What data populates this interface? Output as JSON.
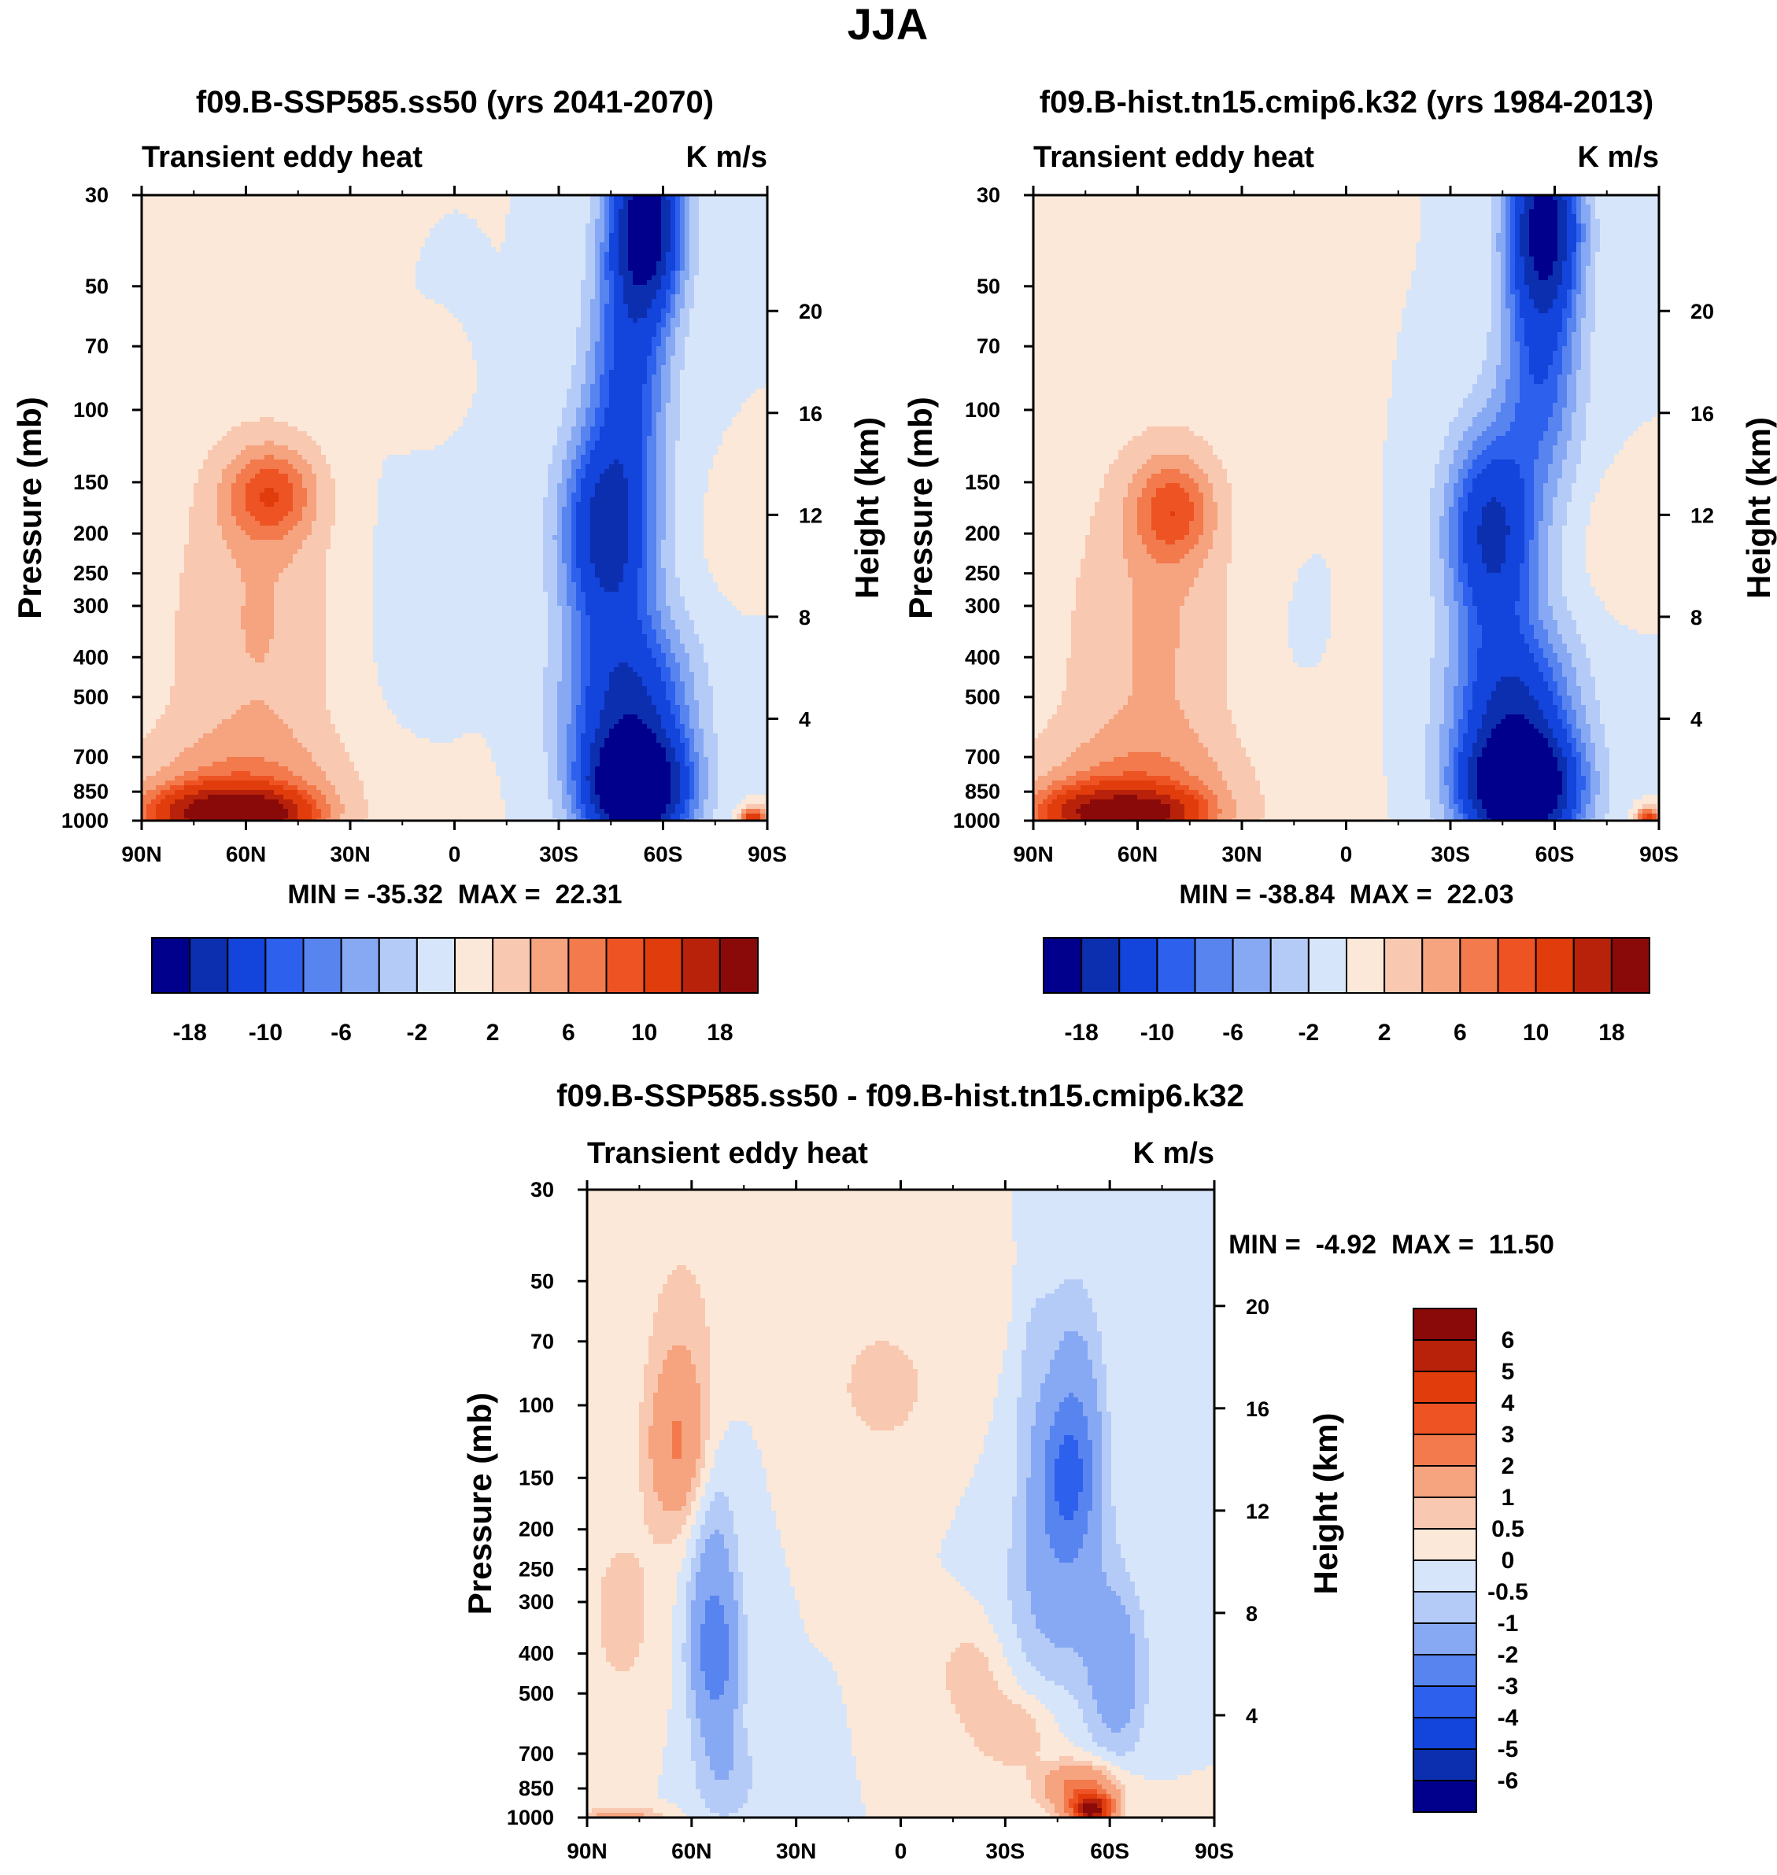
{
  "figure_title": "JJA",
  "chart_data": [
    {
      "type": "heatmap",
      "title": "f09.B-SSP585.ss50 (yrs 2041-2070)",
      "left_string": "Transient eddy heat",
      "right_string": "K m/s",
      "ylabel": "Pressure (mb)",
      "ylabel_right": "Height (km)",
      "x_ticks": [
        "90N",
        "60N",
        "30N",
        "0",
        "30S",
        "60S",
        "90S"
      ],
      "y_ticks": [
        30,
        50,
        70,
        100,
        150,
        200,
        250,
        300,
        400,
        500,
        700,
        850,
        1000
      ],
      "height_ticks": [
        4,
        8,
        12,
        16,
        20
      ],
      "ylim": [
        1000,
        30
      ],
      "xlim": [
        90,
        -90
      ],
      "min_max_label": "MIN = -35.32  MAX =  22.31",
      "min": -35.32,
      "max": 22.31,
      "features": [
        {
          "lat": 71,
          "p": 960,
          "value": 14,
          "sx": 12,
          "sy": 0.1
        },
        {
          "lat": 55,
          "p": 960,
          "value": 12,
          "sx": 10,
          "sy": 0.09
        },
        {
          "lat": 62,
          "p": 900,
          "value": 5,
          "sx": 22,
          "sy": 0.25
        },
        {
          "lat": 53,
          "p": 160,
          "value": 7.5,
          "sx": 9,
          "sy": 0.18
        },
        {
          "lat": 54,
          "p": 260,
          "value": 3,
          "sx": 18,
          "sy": 0.7
        },
        {
          "lat": 55,
          "p": 650,
          "value": 2,
          "sx": 28,
          "sy": 0.9
        },
        {
          "lat": 12,
          "p": 90,
          "value": 1.6,
          "sx": 6,
          "sy": 0.16
        },
        {
          "lat": -81,
          "p": 200,
          "value": 1.5,
          "sx": 5,
          "sy": 0.2
        },
        {
          "lat": 24,
          "p": 350,
          "value": -1.5,
          "sx": 16,
          "sy": 0.7
        },
        {
          "lat": -52,
          "p": 850,
          "value": -26,
          "sx": 10,
          "sy": 0.22
        },
        {
          "lat": -50,
          "p": 520,
          "value": -14,
          "sx": 12,
          "sy": 0.35
        },
        {
          "lat": -44,
          "p": 200,
          "value": -16,
          "sx": 9,
          "sy": 0.4
        },
        {
          "lat": -55,
          "p": 35,
          "value": -22,
          "sx": 7,
          "sy": 0.35
        },
        {
          "lat": -50,
          "p": 80,
          "value": -10,
          "sx": 8,
          "sy": 0.45
        },
        {
          "lat": -86,
          "p": 1000,
          "value": 14,
          "sx": 2.5,
          "sy": 0.05
        }
      ]
    },
    {
      "type": "heatmap",
      "title": "f09.B-hist.tn15.cmip6.k32 (yrs 1984-2013)",
      "left_string": "Transient eddy heat",
      "right_string": "K m/s",
      "ylabel": "Pressure (mb)",
      "ylabel_right": "Height (km)",
      "x_ticks": [
        "90N",
        "60N",
        "30N",
        "0",
        "30S",
        "60S",
        "90S"
      ],
      "y_ticks": [
        30,
        50,
        70,
        100,
        150,
        200,
        250,
        300,
        400,
        500,
        700,
        850,
        1000
      ],
      "height_ticks": [
        4,
        8,
        12,
        16,
        20
      ],
      "ylim": [
        1000,
        30
      ],
      "xlim": [
        90,
        -90
      ],
      "min_max_label": "MIN = -38.84  MAX =  22.03",
      "min": -38.84,
      "max": 22.03,
      "features": [
        {
          "lat": 72,
          "p": 960,
          "value": 13,
          "sx": 12,
          "sy": 0.1
        },
        {
          "lat": 55,
          "p": 960,
          "value": 10,
          "sx": 10,
          "sy": 0.09
        },
        {
          "lat": 62,
          "p": 900,
          "value": 5,
          "sx": 22,
          "sy": 0.25
        },
        {
          "lat": 50,
          "p": 175,
          "value": 7,
          "sx": 8,
          "sy": 0.2
        },
        {
          "lat": 52,
          "p": 280,
          "value": 3,
          "sx": 18,
          "sy": 0.75
        },
        {
          "lat": 55,
          "p": 650,
          "value": 2,
          "sx": 28,
          "sy": 0.9
        },
        {
          "lat": 10,
          "p": 95,
          "value": 1.5,
          "sx": 6,
          "sy": 0.15
        },
        {
          "lat": -78,
          "p": 210,
          "value": 1.5,
          "sx": 6,
          "sy": 0.22
        },
        {
          "lat": 26,
          "p": 380,
          "value": -1.3,
          "sx": 14,
          "sy": 0.6
        },
        {
          "lat": -50,
          "p": 850,
          "value": -26,
          "sx": 11,
          "sy": 0.22
        },
        {
          "lat": -48,
          "p": 540,
          "value": -14,
          "sx": 12,
          "sy": 0.35
        },
        {
          "lat": -42,
          "p": 200,
          "value": -15,
          "sx": 9,
          "sy": 0.4
        },
        {
          "lat": -57,
          "p": 35,
          "value": -20,
          "sx": 7,
          "sy": 0.35
        },
        {
          "lat": -56,
          "p": 80,
          "value": -9,
          "sx": 8,
          "sy": 0.45
        },
        {
          "lat": -87,
          "p": 1000,
          "value": 12,
          "sx": 2.5,
          "sy": 0.05
        }
      ]
    },
    {
      "type": "heatmap",
      "title": "f09.B-SSP585.ss50 - f09.B-hist.tn15.cmip6.k32",
      "left_string": "Transient eddy heat",
      "right_string": "K m/s",
      "ylabel": "Pressure (mb)",
      "ylabel_right": "Height (km)",
      "x_ticks": [
        "90N",
        "60N",
        "30N",
        "0",
        "30S",
        "60S",
        "90S"
      ],
      "y_ticks": [
        30,
        50,
        70,
        100,
        150,
        200,
        250,
        300,
        400,
        500,
        700,
        850,
        1000
      ],
      "height_ticks": [
        4,
        8,
        12,
        16,
        20
      ],
      "ylim": [
        1000,
        30
      ],
      "xlim": [
        90,
        -90
      ],
      "min_max_label": "MIN =  -4.92  MAX =  11.50",
      "min": -4.92,
      "max": 11.5,
      "features": [
        {
          "lat": 64,
          "p": 130,
          "value": 1.7,
          "sx": 6,
          "sy": 0.3
        },
        {
          "lat": 63,
          "p": 75,
          "value": 0.8,
          "sx": 8,
          "sy": 0.5
        },
        {
          "lat": 80,
          "p": 320,
          "value": 0.7,
          "sx": 8,
          "sy": 0.4
        },
        {
          "lat": 5,
          "p": 90,
          "value": 0.7,
          "sx": 12,
          "sy": 0.3
        },
        {
          "lat": -20,
          "p": 450,
          "value": 0.8,
          "sx": 7,
          "sy": 0.2
        },
        {
          "lat": -32,
          "p": 620,
          "value": 1.0,
          "sx": 8,
          "sy": 0.15
        },
        {
          "lat": -55,
          "p": 960,
          "value": 6,
          "sx": 4,
          "sy": 0.06
        },
        {
          "lat": -52,
          "p": 850,
          "value": 2.5,
          "sx": 8,
          "sy": 0.1
        },
        {
          "lat": 80,
          "p": 1000,
          "value": 1.5,
          "sx": 8,
          "sy": 0.04
        },
        {
          "lat": -32,
          "p": 50,
          "value": 0.6,
          "sx": 6,
          "sy": 0.4
        },
        {
          "lat": 53,
          "p": 420,
          "value": -2.0,
          "sx": 5,
          "sy": 0.3
        },
        {
          "lat": 54,
          "p": 250,
          "value": -1.2,
          "sx": 5,
          "sy": 0.5
        },
        {
          "lat": 50,
          "p": 800,
          "value": -0.8,
          "sx": 7,
          "sy": 0.2
        },
        {
          "lat": -48,
          "p": 150,
          "value": -2.6,
          "sx": 6,
          "sy": 0.3
        },
        {
          "lat": -50,
          "p": 90,
          "value": -1.2,
          "sx": 6,
          "sy": 0.45
        },
        {
          "lat": -45,
          "p": 280,
          "value": -1.3,
          "sx": 10,
          "sy": 0.4
        },
        {
          "lat": -62,
          "p": 450,
          "value": -1.5,
          "sx": 6,
          "sy": 0.35
        },
        {
          "lat": -36,
          "p": 60,
          "value": -0.8,
          "sx": 5,
          "sy": 0.6
        }
      ]
    }
  ],
  "colorbars": [
    {
      "levels": [
        -26,
        -18,
        -14,
        -10,
        -8,
        -6,
        -4,
        -2,
        0,
        2,
        4,
        6,
        8,
        10,
        14,
        18,
        26
      ],
      "labels": [
        "-18",
        "-10",
        "-6",
        "-2",
        "2",
        "6",
        "10",
        "18"
      ],
      "colors": [
        "#00008c",
        "#0c2fb0",
        "#1344db",
        "#2d60ec",
        "#5884f0",
        "#87a9f3",
        "#b5cbf7",
        "#d6e5f9",
        "#fbe8d8",
        "#f9c8b0",
        "#f6a37f",
        "#f27a4c",
        "#ee5324",
        "#e03c0c",
        "#b8220a",
        "#8a0a0a"
      ]
    },
    {
      "levels": [
        -26,
        -18,
        -14,
        -10,
        -8,
        -6,
        -4,
        -2,
        0,
        2,
        4,
        6,
        8,
        10,
        14,
        18,
        26
      ],
      "labels": [
        "-18",
        "-10",
        "-6",
        "-2",
        "2",
        "6",
        "10",
        "18"
      ],
      "colors": [
        "#00008c",
        "#0c2fb0",
        "#1344db",
        "#2d60ec",
        "#5884f0",
        "#87a9f3",
        "#b5cbf7",
        "#d6e5f9",
        "#fbe8d8",
        "#f9c8b0",
        "#f6a37f",
        "#f27a4c",
        "#ee5324",
        "#e03c0c",
        "#b8220a",
        "#8a0a0a"
      ]
    },
    {
      "levels": [
        -7,
        -6,
        -5,
        -4,
        -3,
        -2,
        -1,
        -0.5,
        0,
        0.5,
        1,
        2,
        3,
        4,
        5,
        6,
        7
      ],
      "labels": [
        "6",
        "5",
        "4",
        "3",
        "2",
        "1",
        "0.5",
        "0",
        "-0.5",
        "-1",
        "-2",
        "-3",
        "-4",
        "-5",
        "-6"
      ],
      "colors": [
        "#00008c",
        "#0c2fb0",
        "#1344db",
        "#2d60ec",
        "#5884f0",
        "#87a9f3",
        "#b5cbf7",
        "#d6e5f9",
        "#fbe8d8",
        "#f9c8b0",
        "#f6a37f",
        "#f27a4c",
        "#ee5324",
        "#e03c0c",
        "#b8220a",
        "#8a0a0a"
      ]
    }
  ]
}
